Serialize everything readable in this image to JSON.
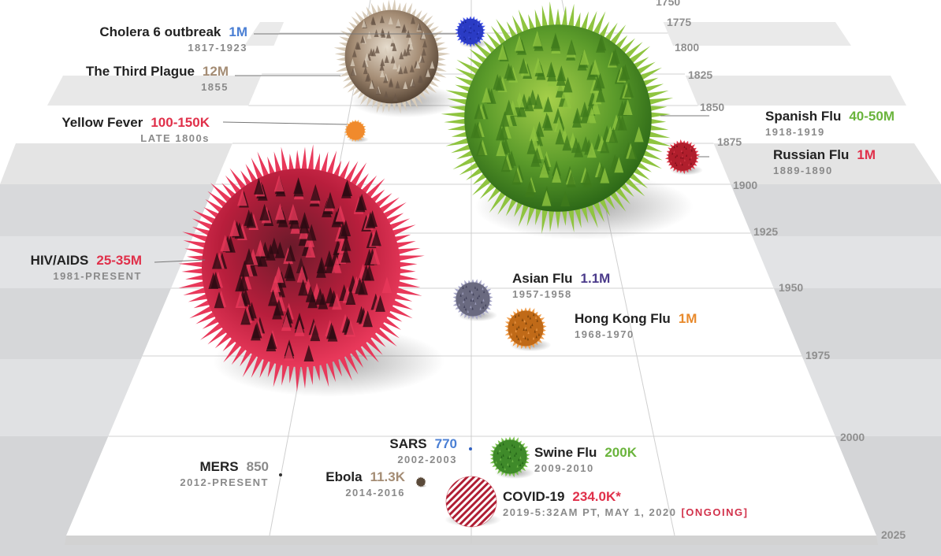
{
  "chart_data": {
    "type": "scatter",
    "timeline_ticks": [
      "1750",
      "1775",
      "1800",
      "1825",
      "1850",
      "1875",
      "1900",
      "1925",
      "1950",
      "1975",
      "2000",
      "2025"
    ],
    "colors": {
      "cholera": "#2a3bc4",
      "plague": "#a48c74",
      "yellow": "#f08a2c",
      "spanish": "#5aa02c",
      "russian": "#b01e2c",
      "hiv": "#d82a48",
      "asian": "#6a6a80",
      "hongkong": "#c06a18",
      "sars": "#3060c0",
      "mers": "#333333",
      "ebola": "#5a4a3a",
      "swine": "#3f8a2a",
      "covid": "#c02a3a"
    },
    "pandemics": [
      {
        "name": "Cholera 6 outbreak",
        "deaths": "1M",
        "years": "1817-1923",
        "deaths_color": "#4a7fd4"
      },
      {
        "name": "The Third Plague",
        "deaths": "12M",
        "years": "1855",
        "deaths_color": "#a48c74"
      },
      {
        "name": "Yellow Fever",
        "deaths": "100-150K",
        "years": "LATE 1800s",
        "deaths_color": "#e0304a"
      },
      {
        "name": "Spanish Flu",
        "deaths": "40-50M",
        "years": "1918-1919",
        "deaths_color": "#6ab43c"
      },
      {
        "name": "Russian Flu",
        "deaths": "1M",
        "years": "1889-1890",
        "deaths_color": "#e0304a"
      },
      {
        "name": "HIV/AIDS",
        "deaths": "25-35M",
        "years": "1981-PRESENT",
        "deaths_color": "#e0304a"
      },
      {
        "name": "Asian Flu",
        "deaths": "1.1M",
        "years": "1957-1958",
        "deaths_color": "#4a3a8a"
      },
      {
        "name": "Hong Kong Flu",
        "deaths": "1M",
        "years": "1968-1970",
        "deaths_color": "#e88a2c"
      },
      {
        "name": "SARS",
        "deaths": "770",
        "years": "2002-2003",
        "deaths_color": "#4a7fd4"
      },
      {
        "name": "MERS",
        "deaths": "850",
        "years": "2012-PRESENT",
        "deaths_color": "#8a8a8a"
      },
      {
        "name": "Ebola",
        "deaths": "11.3K",
        "years": "2014-2016",
        "deaths_color": "#a48c74"
      },
      {
        "name": "Swine Flu",
        "deaths": "200K",
        "years": "2009-2010",
        "deaths_color": "#6ab43c"
      },
      {
        "name": "COVID-19",
        "deaths": "234.0K*",
        "years": "2019-5:32",
        "years_suffix": "AM PT, MAY 1, 2020",
        "status": "[ONGOING]",
        "deaths_color": "#e0304a"
      }
    ]
  }
}
